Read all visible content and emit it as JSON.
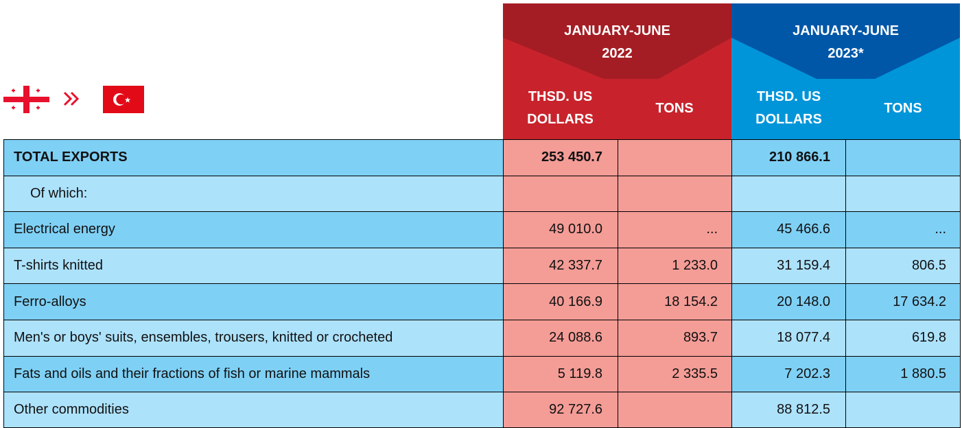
{
  "header": {
    "periods": [
      {
        "title": "JANUARY-JUNE 2022",
        "columns": [
          "THSD. US DOLLARS",
          "TONS"
        ]
      },
      {
        "title": "JANUARY-JUNE 2023*",
        "columns": [
          "THSD. US DOLLARS",
          "TONS"
        ]
      }
    ]
  },
  "table": {
    "rows": [
      [
        "TOTAL EXPORTS",
        "253 450.7",
        null,
        "210 866.1",
        null
      ],
      [
        "Of which:",
        null,
        null,
        null,
        null
      ],
      [
        "Electrical energy",
        "49 010.0",
        "...",
        "45 466.6",
        "..."
      ],
      [
        "T-shirts knitted",
        "42 337.7",
        "1 233.0",
        "31 159.4",
        "806.5"
      ],
      [
        "Ferro-alloys",
        "40 166.9",
        "18 154.2",
        "20 148.0",
        "17 634.2"
      ],
      [
        "Men's or boys' suits, ensembles, trousers, knitted or crocheted",
        "24 088.6",
        "893.7",
        "18 077.4",
        "619.8"
      ],
      [
        "Fats and oils and their fractions of fish or marine mammals",
        "5 119.8",
        "2 335.5",
        "7 202.3",
        "1 880.5"
      ],
      [
        "Other commodities",
        "92 727.6",
        null,
        "88 812.5",
        null
      ]
    ]
  }
}
